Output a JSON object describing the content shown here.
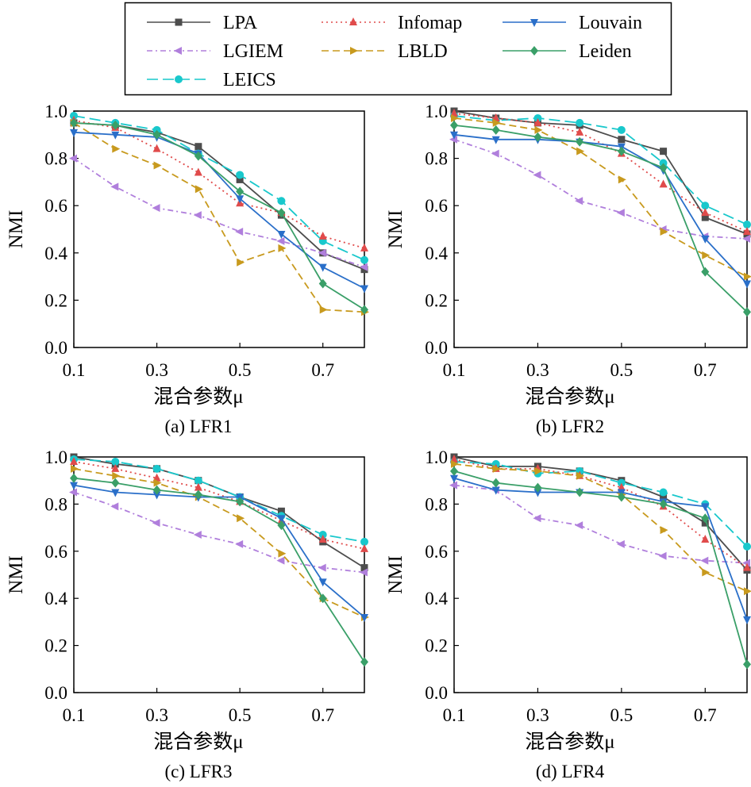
{
  "legend": {
    "entries": [
      {
        "label": "LPA",
        "key": "lpa"
      },
      {
        "label": "Infomap",
        "key": "infomap"
      },
      {
        "label": "Louvain",
        "key": "louvain"
      },
      {
        "label": "LGIEM",
        "key": "lgiem"
      },
      {
        "label": "LBLD",
        "key": "lbld"
      },
      {
        "label": "Leiden",
        "key": "leiden"
      },
      {
        "label": "LEICS",
        "key": "leics"
      }
    ]
  },
  "styles": {
    "lpa": {
      "color": "#4d4d4d",
      "dash": "",
      "marker": "square"
    },
    "lgiem": {
      "color": "#b07fdc",
      "dash": "7,4,2,4",
      "marker": "triangle-left"
    },
    "leics": {
      "color": "#19c8cc",
      "dash": "14,6",
      "marker": "circle"
    },
    "infomap": {
      "color": "#e04b4b",
      "dash": "2,4",
      "marker": "triangle-up"
    },
    "lbld": {
      "color": "#c89a1e",
      "dash": "9,5",
      "marker": "triangle-right"
    },
    "louvain": {
      "color": "#2a6fc9",
      "dash": "",
      "marker": "triangle-down"
    },
    "leiden": {
      "color": "#3a9f68",
      "dash": "",
      "marker": "diamond"
    }
  },
  "chart_data": [
    {
      "type": "line",
      "caption": "(a) LFR1",
      "xlabel": "混合参数μ",
      "ylabel": "NMI",
      "xlim": [
        0.1,
        0.8
      ],
      "ylim": [
        0.0,
        1.0
      ],
      "xticks": [
        "0.1",
        "0.3",
        "0.5",
        "0.7"
      ],
      "yticks": [
        "0.0",
        "0.2",
        "0.4",
        "0.6",
        "0.8",
        "1.0"
      ],
      "x": [
        0.1,
        0.2,
        0.3,
        0.4,
        0.5,
        0.6,
        0.7,
        0.8
      ],
      "series": [
        {
          "key": "lpa",
          "name": "LPA",
          "values": [
            0.95,
            0.94,
            0.91,
            0.85,
            0.71,
            0.56,
            0.4,
            0.33
          ]
        },
        {
          "key": "lgiem",
          "name": "LGIEM",
          "values": [
            0.8,
            0.68,
            0.59,
            0.56,
            0.49,
            0.45,
            0.4,
            0.34
          ]
        },
        {
          "key": "leics",
          "name": "LEICS",
          "values": [
            0.98,
            0.95,
            0.92,
            0.82,
            0.73,
            0.62,
            0.45,
            0.37
          ]
        },
        {
          "key": "infomap",
          "name": "Infomap",
          "values": [
            0.96,
            0.93,
            0.84,
            0.74,
            0.61,
            0.57,
            0.47,
            0.42
          ]
        },
        {
          "key": "lbld",
          "name": "LBLD",
          "values": [
            0.95,
            0.84,
            0.77,
            0.67,
            0.36,
            0.42,
            0.16,
            0.15
          ]
        },
        {
          "key": "louvain",
          "name": "Louvain",
          "values": [
            0.91,
            0.9,
            0.89,
            0.82,
            0.63,
            0.48,
            0.34,
            0.25
          ]
        },
        {
          "key": "leiden",
          "name": "Leiden",
          "values": [
            0.95,
            0.94,
            0.9,
            0.81,
            0.66,
            0.57,
            0.27,
            0.16
          ]
        }
      ]
    },
    {
      "type": "line",
      "caption": "(b) LFR2",
      "xlabel": "混合参数μ",
      "ylabel": "NMI",
      "xlim": [
        0.1,
        0.8
      ],
      "ylim": [
        0.0,
        1.0
      ],
      "xticks": [
        "0.1",
        "0.3",
        "0.5",
        "0.7"
      ],
      "yticks": [
        "0.0",
        "0.2",
        "0.4",
        "0.6",
        "0.8",
        "1.0"
      ],
      "x": [
        0.1,
        0.2,
        0.3,
        0.4,
        0.5,
        0.6,
        0.7,
        0.8
      ],
      "series": [
        {
          "key": "lpa",
          "name": "LPA",
          "values": [
            1.0,
            0.97,
            0.95,
            0.94,
            0.88,
            0.83,
            0.55,
            0.48
          ]
        },
        {
          "key": "lgiem",
          "name": "LGIEM",
          "values": [
            0.88,
            0.82,
            0.73,
            0.62,
            0.57,
            0.5,
            0.47,
            0.46
          ]
        },
        {
          "key": "leics",
          "name": "LEICS",
          "values": [
            0.98,
            0.96,
            0.97,
            0.95,
            0.92,
            0.78,
            0.6,
            0.52
          ]
        },
        {
          "key": "infomap",
          "name": "Infomap",
          "values": [
            0.99,
            0.97,
            0.95,
            0.91,
            0.82,
            0.69,
            0.57,
            0.49
          ]
        },
        {
          "key": "lbld",
          "name": "LBLD",
          "values": [
            0.97,
            0.95,
            0.92,
            0.83,
            0.71,
            0.49,
            0.39,
            0.3
          ]
        },
        {
          "key": "louvain",
          "name": "Louvain",
          "values": [
            0.9,
            0.88,
            0.88,
            0.87,
            0.85,
            0.75,
            0.46,
            0.27
          ]
        },
        {
          "key": "leiden",
          "name": "Leiden",
          "values": [
            0.94,
            0.92,
            0.89,
            0.87,
            0.83,
            0.76,
            0.32,
            0.15
          ]
        }
      ]
    },
    {
      "type": "line",
      "caption": "(c) LFR3",
      "xlabel": "混合参数μ",
      "ylabel": "NMI",
      "xlim": [
        0.1,
        0.8
      ],
      "ylim": [
        0.0,
        1.0
      ],
      "xticks": [
        "0.1",
        "0.3",
        "0.5",
        "0.7"
      ],
      "yticks": [
        "0.0",
        "0.2",
        "0.4",
        "0.6",
        "0.8",
        "1.0"
      ],
      "x": [
        0.1,
        0.2,
        0.3,
        0.4,
        0.5,
        0.6,
        0.7,
        0.8
      ],
      "series": [
        {
          "key": "lpa",
          "name": "LPA",
          "values": [
            1.0,
            0.97,
            0.95,
            0.9,
            0.83,
            0.77,
            0.64,
            0.53
          ]
        },
        {
          "key": "lgiem",
          "name": "LGIEM",
          "values": [
            0.85,
            0.79,
            0.72,
            0.67,
            0.63,
            0.56,
            0.53,
            0.51
          ]
        },
        {
          "key": "leics",
          "name": "LEICS",
          "values": [
            0.99,
            0.98,
            0.95,
            0.9,
            0.83,
            0.75,
            0.67,
            0.64
          ]
        },
        {
          "key": "infomap",
          "name": "Infomap",
          "values": [
            0.98,
            0.95,
            0.91,
            0.87,
            0.81,
            0.73,
            0.65,
            0.61
          ]
        },
        {
          "key": "lbld",
          "name": "LBLD",
          "values": [
            0.95,
            0.92,
            0.89,
            0.83,
            0.74,
            0.59,
            0.4,
            0.32
          ]
        },
        {
          "key": "louvain",
          "name": "Louvain",
          "values": [
            0.88,
            0.85,
            0.84,
            0.83,
            0.83,
            0.74,
            0.47,
            0.32
          ]
        },
        {
          "key": "leiden",
          "name": "Leiden",
          "values": [
            0.91,
            0.89,
            0.86,
            0.84,
            0.81,
            0.71,
            0.4,
            0.13
          ]
        }
      ]
    },
    {
      "type": "line",
      "caption": "(d) LFR4",
      "xlabel": "混合参数μ",
      "ylabel": "NMI",
      "xlim": [
        0.1,
        0.8
      ],
      "ylim": [
        0.0,
        1.0
      ],
      "xticks": [
        "0.1",
        "0.3",
        "0.5",
        "0.7"
      ],
      "yticks": [
        "0.0",
        "0.2",
        "0.4",
        "0.6",
        "0.8",
        "1.0"
      ],
      "x": [
        0.1,
        0.2,
        0.3,
        0.4,
        0.5,
        0.6,
        0.7,
        0.8
      ],
      "series": [
        {
          "key": "lpa",
          "name": "LPA",
          "values": [
            1.0,
            0.96,
            0.96,
            0.94,
            0.9,
            0.83,
            0.72,
            0.52
          ]
        },
        {
          "key": "lgiem",
          "name": "LGIEM",
          "values": [
            0.88,
            0.86,
            0.74,
            0.71,
            0.63,
            0.58,
            0.56,
            0.55
          ]
        },
        {
          "key": "leics",
          "name": "LEICS",
          "values": [
            0.98,
            0.97,
            0.93,
            0.94,
            0.89,
            0.85,
            0.8,
            0.62
          ]
        },
        {
          "key": "infomap",
          "name": "Infomap",
          "values": [
            0.99,
            0.95,
            0.95,
            0.92,
            0.87,
            0.79,
            0.65,
            0.53
          ]
        },
        {
          "key": "lbld",
          "name": "LBLD",
          "values": [
            0.97,
            0.95,
            0.94,
            0.92,
            0.84,
            0.69,
            0.51,
            0.43
          ]
        },
        {
          "key": "louvain",
          "name": "Louvain",
          "values": [
            0.91,
            0.86,
            0.85,
            0.85,
            0.85,
            0.81,
            0.79,
            0.31
          ]
        },
        {
          "key": "leiden",
          "name": "Leiden",
          "values": [
            0.94,
            0.89,
            0.87,
            0.85,
            0.83,
            0.8,
            0.74,
            0.12
          ]
        }
      ]
    }
  ]
}
